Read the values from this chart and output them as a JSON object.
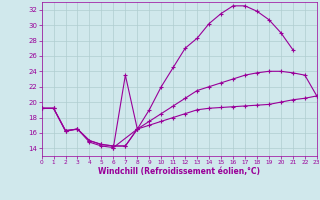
{
  "bg_color": "#d0e8ec",
  "grid_color": "#b0cdd0",
  "line_color": "#990099",
  "marker": "+",
  "xlabel": "Windchill (Refroidissement éolien,°C)",
  "xlim": [
    0,
    23
  ],
  "ylim": [
    13,
    33
  ],
  "yticks": [
    14,
    16,
    18,
    20,
    22,
    24,
    26,
    28,
    30,
    32
  ],
  "xticks": [
    0,
    1,
    2,
    3,
    4,
    5,
    6,
    7,
    8,
    9,
    10,
    11,
    12,
    13,
    14,
    15,
    16,
    17,
    18,
    19,
    20,
    21,
    22,
    23
  ],
  "series": [
    {
      "x": [
        0,
        1,
        2,
        3,
        4,
        5,
        6,
        8,
        9,
        10,
        11,
        12,
        13,
        14,
        15,
        16,
        17,
        18,
        19,
        20,
        21,
        22
      ],
      "y": [
        19.2,
        19.2,
        16.2,
        16.5,
        14.8,
        14.3,
        14.1,
        16.5,
        19,
        22,
        24.5,
        27.0,
        28.3,
        30.2,
        31.5,
        32.5,
        32.5,
        31.8,
        30.7,
        29.0,
        26.8,
        null
      ]
    },
    {
      "x": [
        6,
        7,
        8
      ],
      "y": [
        14.1,
        23.5,
        16.5
      ]
    },
    {
      "x": [
        0,
        1,
        2,
        3,
        4,
        5,
        6,
        7,
        8,
        9,
        10,
        11,
        12,
        13,
        14,
        15,
        16,
        17,
        18,
        19,
        20,
        21,
        22,
        23
      ],
      "y": [
        19.2,
        19.2,
        16.3,
        16.5,
        15.0,
        14.5,
        14.3,
        14.3,
        16.5,
        17.0,
        17.5,
        18.0,
        18.5,
        19.0,
        19.2,
        19.3,
        19.4,
        19.5,
        19.6,
        19.7,
        20.0,
        20.3,
        20.5,
        20.8
      ]
    },
    {
      "x": [
        0,
        1,
        2,
        3,
        4,
        5,
        6,
        7,
        8,
        9,
        10,
        11,
        12,
        13,
        14,
        15,
        16,
        17,
        18,
        19,
        20,
        21,
        22,
        23
      ],
      "y": [
        19.2,
        19.2,
        16.3,
        16.5,
        15.0,
        14.5,
        14.3,
        14.3,
        16.5,
        17.5,
        18.5,
        19.5,
        20.5,
        21.5,
        22.0,
        22.5,
        23.0,
        23.5,
        23.8,
        24.0,
        24.0,
        23.8,
        23.5,
        20.8
      ]
    }
  ]
}
